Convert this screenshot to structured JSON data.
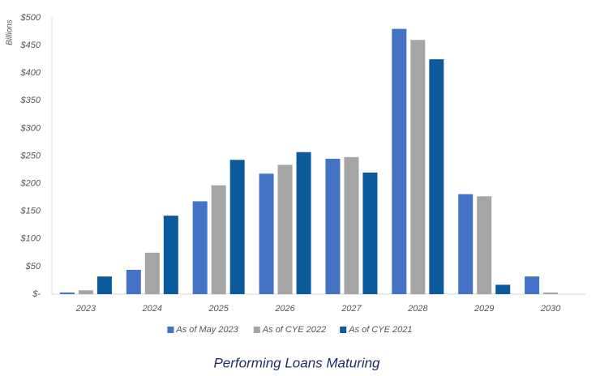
{
  "chart_data": {
    "type": "bar",
    "title": "Performing Loans Maturing",
    "y_label": "Billions",
    "categories": [
      "2023",
      "2024",
      "2025",
      "2026",
      "2027",
      "2028",
      "2029",
      "2030"
    ],
    "series": [
      {
        "name": "As of May 2023",
        "color": "#4472c4",
        "values": [
          3,
          44,
          168,
          218,
          245,
          480,
          181,
          32
        ]
      },
      {
        "name": "As of CYE 2022",
        "color": "#a5a5a5",
        "values": [
          7,
          75,
          197,
          234,
          248,
          460,
          177,
          3
        ]
      },
      {
        "name": "As of CYE 2021",
        "color": "#0a5a9c",
        "values": [
          32,
          142,
          243,
          257,
          220,
          425,
          17,
          null
        ]
      }
    ],
    "ylim": [
      0,
      500
    ],
    "yticks": [
      {
        "value": 0,
        "label": "$-"
      },
      {
        "value": 50,
        "label": "$50"
      },
      {
        "value": 100,
        "label": "$100"
      },
      {
        "value": 150,
        "label": "$150"
      },
      {
        "value": 200,
        "label": "$200"
      },
      {
        "value": 250,
        "label": "$250"
      },
      {
        "value": 300,
        "label": "$300"
      },
      {
        "value": 350,
        "label": "$350"
      },
      {
        "value": 400,
        "label": "$400"
      },
      {
        "value": 450,
        "label": "$450"
      },
      {
        "value": 500,
        "label": "$500"
      }
    ],
    "legend": "bottom",
    "grid": false
  }
}
